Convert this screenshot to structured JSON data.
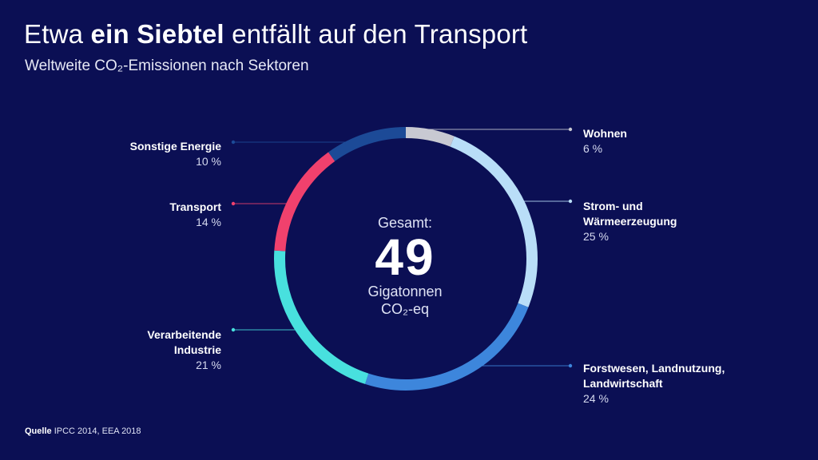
{
  "title": {
    "prefix": "Etwa ",
    "bold": "ein Siebtel",
    "suffix": " entfällt auf den Transport"
  },
  "subtitle": "Weltweite CO₂-Emissionen nach Sektoren",
  "center": {
    "label": "Gesamt:",
    "total": "49",
    "unit_line1": "Gigatonnen",
    "unit_line2": "CO₂-eq"
  },
  "source": {
    "label": "Quelle",
    "text": "IPCC 2014, EEA 2018"
  },
  "chart_data": {
    "type": "pie",
    "title": "Etwa ein Siebtel entfällt auf den Transport",
    "subtitle": "Weltweite CO₂-Emissionen nach Sektoren",
    "total_label": "Gesamt: 49 Gigatonnen CO₂-eq",
    "slices": [
      {
        "name": "Wohnen",
        "value": 6,
        "label": "6 %",
        "color": "#c8c9d2"
      },
      {
        "name": "Strom- und Wärmeerzeugung",
        "name_line1": "Strom- und",
        "name_line2": "Wärmeerzeugung",
        "value": 25,
        "label": "25 %",
        "color": "#b9def8"
      },
      {
        "name": "Forstwesen, Landnutzung, Landwirtschaft",
        "name_line1": "Forstwesen, Landnutzung,",
        "name_line2": "Landwirtschaft",
        "value": 24,
        "label": "24 %",
        "color": "#3d86dc"
      },
      {
        "name": "Verarbeitende Industrie",
        "name_line1": "Verarbeitende",
        "name_line2": "Industrie",
        "value": 21,
        "label": "21 %",
        "color": "#48e0de"
      },
      {
        "name": "Transport",
        "value": 14,
        "label": "14 %",
        "color": "#f0416d"
      },
      {
        "name": "Sonstige Energie",
        "value": 10,
        "label": "10 %",
        "color": "#1c4a97"
      }
    ]
  }
}
